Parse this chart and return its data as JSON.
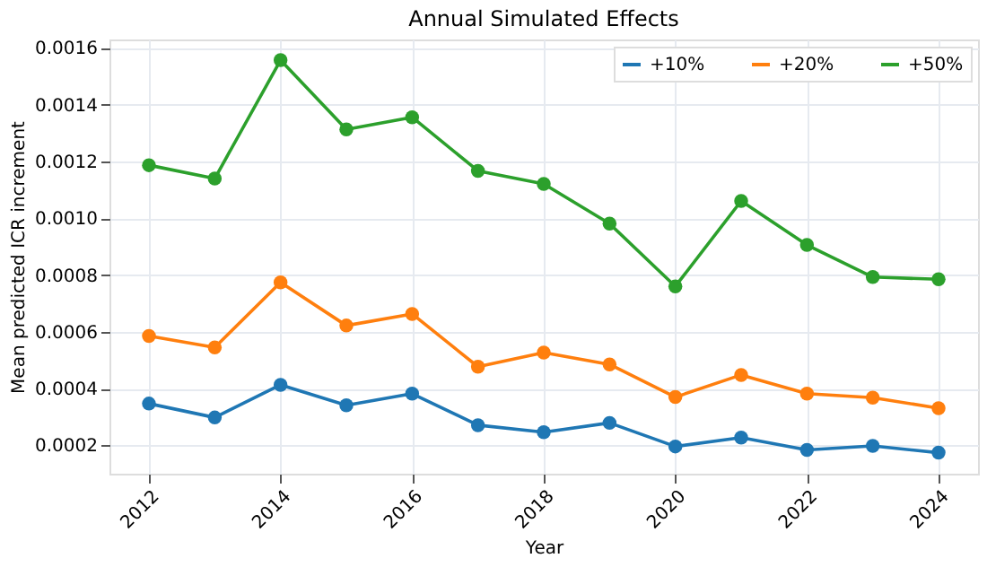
{
  "chart_data": {
    "type": "line",
    "title": "Annual Simulated Effects",
    "xlabel": "Year",
    "ylabel": "Mean predicted ICR increment",
    "x": [
      2012,
      2013,
      2014,
      2015,
      2016,
      2017,
      2018,
      2019,
      2020,
      2021,
      2022,
      2023,
      2024
    ],
    "series": [
      {
        "name": "+10%",
        "color": "#1f77b4",
        "values": [
          0.000347,
          0.000298,
          0.000413,
          0.000341,
          0.000382,
          0.000271,
          0.000246,
          0.000279,
          0.000196,
          0.000227,
          0.000184,
          0.000198,
          0.000174
        ]
      },
      {
        "name": "+20%",
        "color": "#ff7f0e",
        "values": [
          0.000585,
          0.000545,
          0.000774,
          0.000622,
          0.000663,
          0.000477,
          0.000527,
          0.000485,
          0.00037,
          0.000448,
          0.000382,
          0.000368,
          0.000331
        ]
      },
      {
        "name": "+50%",
        "color": "#2ca02c",
        "values": [
          0.001187,
          0.00114,
          0.001557,
          0.001313,
          0.001356,
          0.001167,
          0.001121,
          0.000981,
          0.00076,
          0.001061,
          0.000906,
          0.000793,
          0.000785
        ]
      }
    ],
    "xlim": [
      2011.4,
      2024.6
    ],
    "xticks": [
      2012,
      2014,
      2016,
      2018,
      2020,
      2022,
      2024
    ],
    "ylim": [
      0.0001,
      0.00163
    ],
    "yticks": [
      {
        "value": 0.0002,
        "label": "0.0002"
      },
      {
        "value": 0.0004,
        "label": "0.0004"
      },
      {
        "value": 0.0006,
        "label": "0.0006"
      },
      {
        "value": 0.0008,
        "label": "0.0008"
      },
      {
        "value": 0.001,
        "label": "0.0010"
      },
      {
        "value": 0.0012,
        "label": "0.0012"
      },
      {
        "value": 0.0014,
        "label": "0.0014"
      },
      {
        "value": 0.0016,
        "label": "0.0016"
      }
    ],
    "grid": true,
    "legend": "top right",
    "marker": "circle",
    "line_style": "solid"
  }
}
